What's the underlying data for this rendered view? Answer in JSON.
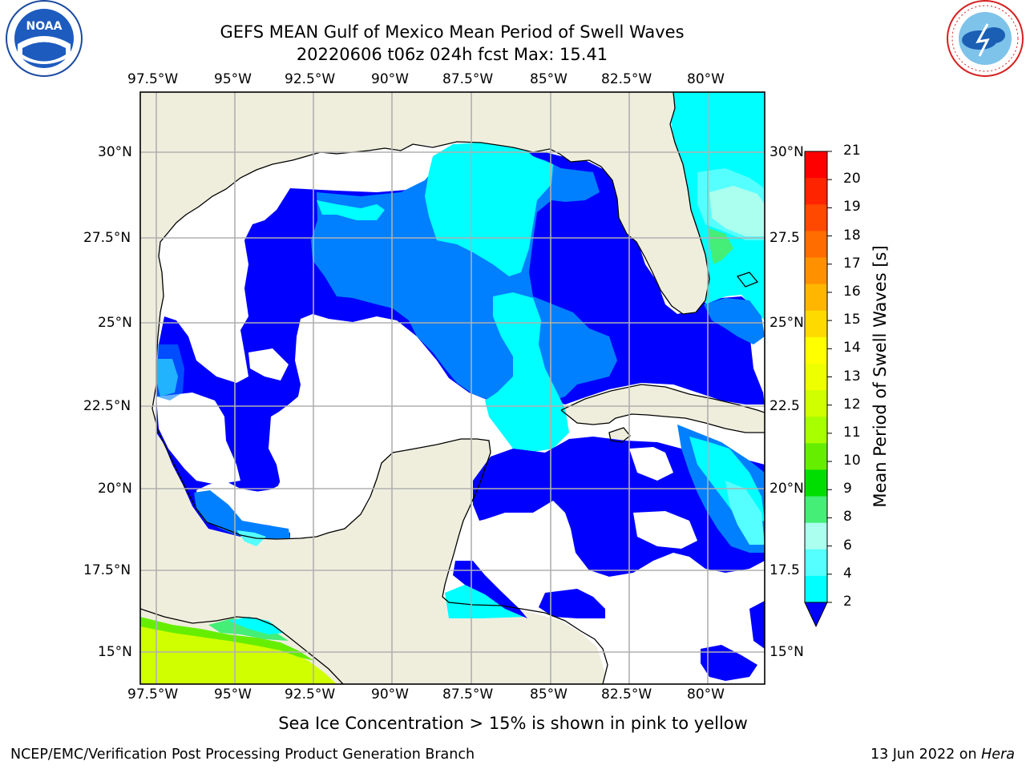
{
  "title": {
    "line1": "GEFS MEAN Gulf of Mexico Mean Period of Swell Waves",
    "line2": "20220606 t06z 024h fcst   Max: 15.41"
  },
  "logos": {
    "left": "NOAA",
    "left_ring_text": "NATIONAL OCEANIC AND ATMOSPHERIC ADMINISTRATION · U.S. DEPARTMENT OF COMMERCE",
    "right_ring_text": "NATIONAL WEATHER SERVICE"
  },
  "axes": {
    "lon_labels": [
      "97.5°W",
      "95°W",
      "92.5°W",
      "90°W",
      "87.5°W",
      "85°W",
      "82.5°W",
      "80°W"
    ],
    "lat_labels_left": [
      "30°N",
      "27.5°N",
      "25°N",
      "22.5°N",
      "20°N",
      "17.5°N",
      "15°N"
    ],
    "lat_labels_right": [
      "30°N",
      "27.5",
      "25°N",
      "22.5",
      "20°N",
      "17.5",
      "15°N"
    ]
  },
  "colorbar": {
    "label": "Mean Period of Swell Waves [s]",
    "ticks": [
      "21",
      "20",
      "19",
      "18",
      "17",
      "16",
      "15",
      "14",
      "13",
      "12",
      "11",
      "10",
      "9",
      "8",
      "6",
      "4",
      "2"
    ],
    "colors": [
      "#ff0000",
      "#ff2400",
      "#ff4800",
      "#ff6d00",
      "#ff9100",
      "#ffb600",
      "#ffda00",
      "#ffff00",
      "#eeff00",
      "#d0ff00",
      "#a8ff00",
      "#66ee00",
      "#00dd00",
      "#44ee77",
      "#aaffee",
      "#55ffff",
      "#00ffff",
      "#0080ff"
    ],
    "extend_color": "#0000ff"
  },
  "colors": {
    "land": "#efeedd",
    "ocean_missing": "#ffffff",
    "band_2_4": "#0000ff",
    "band_4_6": "#0080ff",
    "band_6_8": "#00ffff",
    "band_8_9": "#55ffff",
    "band_9_10": "#aaffee",
    "band_10_11": "#44ee77",
    "band_12_13": "#66ee00",
    "band_14_15": "#d0ff00",
    "grid": "#b0b0b0"
  },
  "note": "Sea Ice Concentration > 15% is shown in pink to yellow",
  "footer": {
    "left": "NCEP/EMC/Verification Post Processing Product Generation Branch",
    "right_prefix": "13 Jun 2022 on ",
    "right_host": "Hera"
  }
}
